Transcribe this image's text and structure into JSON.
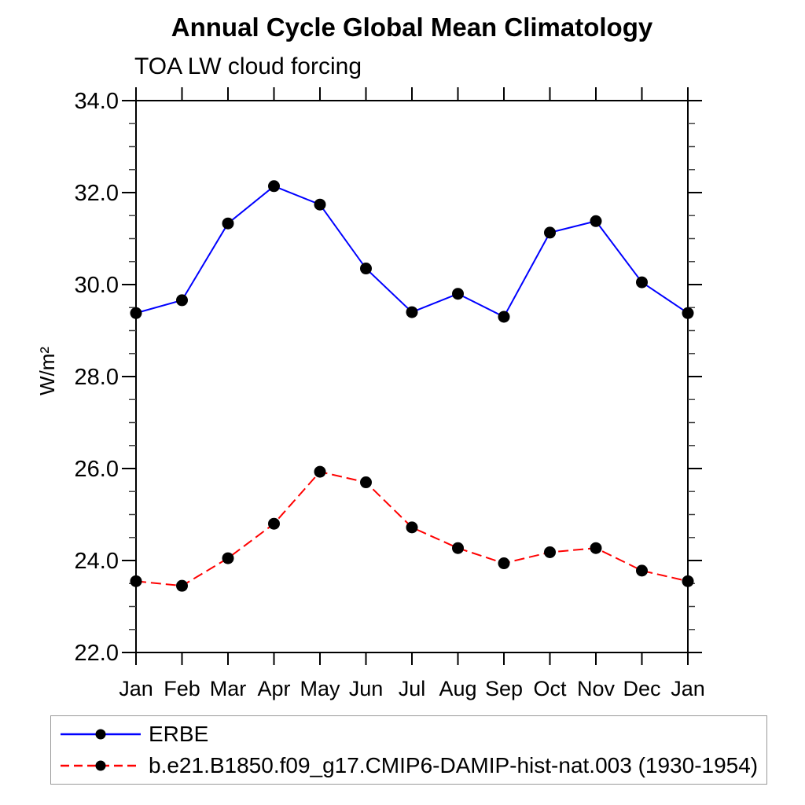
{
  "chart_data": {
    "type": "line",
    "title": "Annual Cycle Global Mean Climatology",
    "subtitle": "TOA LW cloud forcing",
    "ylabel": "W/m²",
    "xlabel": "",
    "categories": [
      "Jan",
      "Feb",
      "Mar",
      "Apr",
      "May",
      "Jun",
      "Jul",
      "Aug",
      "Sep",
      "Oct",
      "Nov",
      "Dec",
      "Jan"
    ],
    "ylim": [
      22.0,
      34.0
    ],
    "y_major_step": 2.0,
    "y_minor_step": 0.5,
    "y_tick_labels": [
      "22.0",
      "24.0",
      "26.0",
      "28.0",
      "30.0",
      "32.0",
      "34.0"
    ],
    "grid": false,
    "tick_direction": "out",
    "legend_position": "bottom-box",
    "series": [
      {
        "name": "ERBE",
        "color": "#0000ff",
        "line_style": "solid",
        "marker": "filled-circle",
        "marker_color": "#000000",
        "values": [
          29.38,
          29.66,
          31.33,
          32.14,
          31.74,
          30.35,
          29.4,
          29.8,
          29.3,
          31.13,
          31.38,
          30.05,
          29.38
        ]
      },
      {
        "name": "b.e21.B1850.f09_g17.CMIP6-DAMIP-hist-nat.003 (1930-1954)",
        "color": "#ff0000",
        "line_style": "dashed",
        "marker": "filled-circle",
        "marker_color": "#000000",
        "values": [
          23.55,
          23.45,
          24.05,
          24.8,
          25.93,
          25.7,
          24.72,
          24.27,
          23.94,
          24.18,
          24.27,
          23.78,
          23.55
        ]
      }
    ]
  },
  "style": {
    "background": "#ffffff",
    "axis_color": "#000000",
    "minor_tick_color": "#444444",
    "legend_border_color": "#999999",
    "text_color": "#000000"
  }
}
